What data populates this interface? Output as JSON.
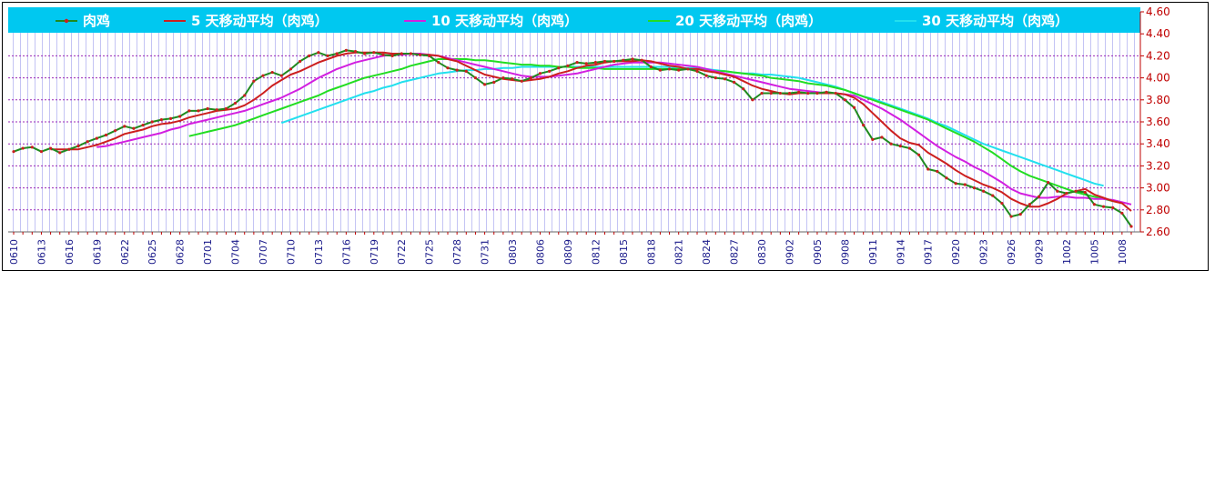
{
  "chart_data": {
    "type": "line",
    "title": "",
    "xlabel": "",
    "ylabel": "",
    "ylim": [
      2.6,
      4.6
    ],
    "yticks": [
      "2.60",
      "2.80",
      "3.00",
      "3.20",
      "3.40",
      "3.60",
      "3.80",
      "4.00",
      "4.20",
      "4.40",
      "4.60"
    ],
    "xtick_labels": [
      "0610",
      "0613",
      "0616",
      "0619",
      "0622",
      "0625",
      "0628",
      "0701",
      "0704",
      "0707",
      "0710",
      "0713",
      "0716",
      "0719",
      "0722",
      "0725",
      "0728",
      "0731",
      "0803",
      "0806",
      "0809",
      "0812",
      "0815",
      "0818",
      "0821",
      "0824",
      "0827",
      "0830",
      "0902",
      "0905",
      "0908",
      "0911",
      "0914",
      "0917",
      "0920",
      "0923",
      "0926",
      "0929",
      "1002",
      "1005",
      "1008"
    ],
    "grid": true,
    "legend_position": "top",
    "series": [
      {
        "name": "肉鸡",
        "color": "#1f8a1f",
        "values": [
          3.33,
          3.36,
          3.37,
          3.33,
          3.36,
          3.32,
          3.35,
          3.38,
          3.42,
          3.45,
          3.48,
          3.52,
          3.56,
          3.54,
          3.57,
          3.6,
          3.62,
          3.63,
          3.65,
          3.7,
          3.7,
          3.72,
          3.71,
          3.72,
          3.77,
          3.84,
          3.97,
          4.02,
          4.05,
          4.02,
          4.08,
          4.15,
          4.2,
          4.23,
          4.2,
          4.22,
          4.25,
          4.24,
          4.22,
          4.23,
          4.21,
          4.2,
          4.22,
          4.22,
          4.21,
          4.2,
          4.14,
          4.09,
          4.07,
          4.06,
          4.0,
          3.94,
          3.96,
          4.0,
          3.99,
          3.97,
          4.0,
          4.04,
          4.06,
          4.09,
          4.11,
          4.14,
          4.13,
          4.14,
          4.15,
          4.15,
          4.16,
          4.17,
          4.16,
          4.1,
          4.07,
          4.08,
          4.07,
          4.08,
          4.06,
          4.02,
          4.0,
          3.99,
          3.96,
          3.9,
          3.8,
          3.86,
          3.86,
          3.86,
          3.86,
          3.87,
          3.86,
          3.86,
          3.87,
          3.86,
          3.8,
          3.73,
          3.57,
          3.44,
          3.46,
          3.4,
          3.38,
          3.36,
          3.3,
          3.17,
          3.15,
          3.09,
          3.04,
          3.03,
          3.0,
          2.97,
          2.93,
          2.86,
          2.74,
          2.76,
          2.85,
          2.92,
          3.05,
          2.97,
          2.95,
          2.97,
          2.96,
          2.85,
          2.83,
          2.82,
          2.77,
          2.65
        ]
      },
      {
        "name": "5 天移动平均（肉鸡）",
        "color": "#cc1f1f",
        "values": [
          null,
          null,
          null,
          null,
          3.35,
          3.35,
          3.35,
          3.35,
          3.37,
          3.39,
          3.42,
          3.45,
          3.49,
          3.51,
          3.53,
          3.56,
          3.58,
          3.59,
          3.61,
          3.64,
          3.66,
          3.68,
          3.7,
          3.71,
          3.72,
          3.75,
          3.8,
          3.86,
          3.93,
          3.98,
          4.03,
          4.06,
          4.1,
          4.14,
          4.17,
          4.2,
          4.22,
          4.23,
          4.23,
          4.23,
          4.23,
          4.22,
          4.22,
          4.22,
          4.21,
          4.21,
          4.2,
          4.17,
          4.15,
          4.11,
          4.07,
          4.03,
          4.01,
          3.99,
          3.98,
          3.97,
          3.98,
          3.99,
          4.01,
          4.04,
          4.06,
          4.09,
          4.11,
          4.12,
          4.14,
          4.15,
          4.15,
          4.15,
          4.16,
          4.15,
          4.13,
          4.11,
          4.1,
          4.08,
          4.08,
          4.06,
          4.05,
          4.03,
          4.01,
          3.97,
          3.93,
          3.9,
          3.88,
          3.86,
          3.85,
          3.86,
          3.86,
          3.86,
          3.86,
          3.86,
          3.85,
          3.82,
          3.76,
          3.68,
          3.6,
          3.52,
          3.45,
          3.41,
          3.39,
          3.32,
          3.27,
          3.22,
          3.16,
          3.11,
          3.07,
          3.03,
          3.0,
          2.96,
          2.9,
          2.86,
          2.83,
          2.83,
          2.86,
          2.9,
          2.95,
          2.97,
          2.99,
          2.94,
          2.91,
          2.88,
          2.86,
          2.79
        ]
      },
      {
        "name": "10 天移动平均（肉鸡）",
        "color": "#d21fe0",
        "values": [
          null,
          null,
          null,
          null,
          null,
          null,
          null,
          null,
          null,
          3.37,
          3.38,
          3.4,
          3.42,
          3.44,
          3.46,
          3.48,
          3.5,
          3.53,
          3.55,
          3.58,
          3.6,
          3.62,
          3.64,
          3.66,
          3.68,
          3.7,
          3.73,
          3.76,
          3.79,
          3.82,
          3.86,
          3.9,
          3.95,
          4.0,
          4.04,
          4.08,
          4.11,
          4.14,
          4.16,
          4.18,
          4.2,
          4.21,
          4.21,
          4.22,
          4.22,
          4.21,
          4.2,
          4.18,
          4.16,
          4.14,
          4.12,
          4.1,
          4.08,
          4.06,
          4.04,
          4.02,
          4.01,
          4.01,
          4.01,
          4.02,
          4.03,
          4.04,
          4.06,
          4.08,
          4.1,
          4.12,
          4.13,
          4.14,
          4.14,
          4.14,
          4.14,
          4.13,
          4.12,
          4.11,
          4.1,
          4.08,
          4.06,
          4.04,
          4.02,
          4.0,
          3.98,
          3.96,
          3.94,
          3.92,
          3.9,
          3.89,
          3.88,
          3.87,
          3.86,
          3.86,
          3.85,
          3.84,
          3.8,
          3.76,
          3.72,
          3.67,
          3.62,
          3.56,
          3.5,
          3.44,
          3.38,
          3.33,
          3.28,
          3.24,
          3.19,
          3.15,
          3.1,
          3.05,
          2.99,
          2.95,
          2.93,
          2.91,
          2.91,
          2.92,
          2.92,
          2.91,
          2.91,
          2.9,
          2.9,
          2.89,
          2.87,
          2.85
        ]
      },
      {
        "name": "20 天移动平均（肉鸡）",
        "color": "#22dd22",
        "values": [
          null,
          null,
          null,
          null,
          null,
          null,
          null,
          null,
          null,
          null,
          null,
          null,
          null,
          null,
          null,
          null,
          null,
          null,
          null,
          3.47,
          3.49,
          3.51,
          3.53,
          3.55,
          3.57,
          3.6,
          3.63,
          3.66,
          3.69,
          3.72,
          3.75,
          3.78,
          3.81,
          3.84,
          3.88,
          3.91,
          3.94,
          3.97,
          4.0,
          4.02,
          4.04,
          4.06,
          4.08,
          4.11,
          4.13,
          4.15,
          4.17,
          4.17,
          4.17,
          4.17,
          4.16,
          4.16,
          4.15,
          4.14,
          4.13,
          4.12,
          4.12,
          4.11,
          4.11,
          4.1,
          4.1,
          4.09,
          4.09,
          4.09,
          4.08,
          4.08,
          4.08,
          4.08,
          4.08,
          4.08,
          4.08,
          4.08,
          4.08,
          4.08,
          4.08,
          4.07,
          4.06,
          4.06,
          4.05,
          4.04,
          4.03,
          4.02,
          4.0,
          3.99,
          3.98,
          3.97,
          3.95,
          3.94,
          3.93,
          3.91,
          3.89,
          3.86,
          3.83,
          3.8,
          3.77,
          3.74,
          3.71,
          3.68,
          3.65,
          3.62,
          3.58,
          3.54,
          3.5,
          3.46,
          3.42,
          3.37,
          3.32,
          3.26,
          3.2,
          3.15,
          3.11,
          3.08,
          3.05,
          3.02,
          2.99,
          2.96,
          2.94,
          2.92,
          2.9,
          2.88
        ]
      },
      {
        "name": "30 天移动平均（肉鸡）",
        "color": "#22e0ee",
        "values": [
          null,
          null,
          null,
          null,
          null,
          null,
          null,
          null,
          null,
          null,
          null,
          null,
          null,
          null,
          null,
          null,
          null,
          null,
          null,
          null,
          null,
          null,
          null,
          null,
          null,
          null,
          null,
          null,
          null,
          3.59,
          3.62,
          3.65,
          3.68,
          3.71,
          3.74,
          3.77,
          3.8,
          3.83,
          3.86,
          3.88,
          3.91,
          3.93,
          3.96,
          3.98,
          4.0,
          4.02,
          4.04,
          4.05,
          4.06,
          4.07,
          4.07,
          4.08,
          4.08,
          4.09,
          4.09,
          4.1,
          4.1,
          4.1,
          4.1,
          4.1,
          4.1,
          4.1,
          4.1,
          4.1,
          4.1,
          4.1,
          4.1,
          4.1,
          4.1,
          4.1,
          4.1,
          4.1,
          4.09,
          4.09,
          4.09,
          4.08,
          4.07,
          4.06,
          4.05,
          4.04,
          4.04,
          4.03,
          4.03,
          4.02,
          4.01,
          4.0,
          3.98,
          3.96,
          3.94,
          3.92,
          3.89,
          3.86,
          3.83,
          3.81,
          3.78,
          3.75,
          3.72,
          3.69,
          3.66,
          3.63,
          3.59,
          3.56,
          3.52,
          3.48,
          3.44,
          3.4,
          3.37,
          3.34,
          3.31,
          3.28,
          3.25,
          3.22,
          3.19,
          3.16,
          3.13,
          3.1,
          3.07,
          3.04,
          3.02
        ]
      }
    ]
  }
}
